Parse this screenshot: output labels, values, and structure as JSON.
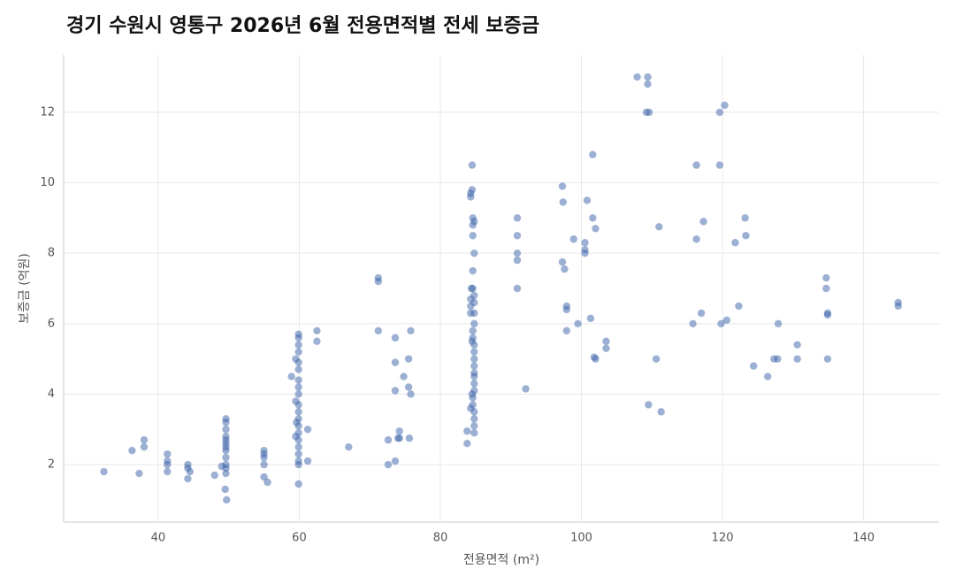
{
  "chart_data": {
    "type": "scatter",
    "title": "경기 수원시 영통구 2026년 6월 전용면적별 전세 보증금",
    "x_label": "전용면적 (m²)",
    "y_label": "보증금 (억원)",
    "color": "#3a62a8",
    "grid": true,
    "xlim": [
      26.6,
      150.7
    ],
    "ylim": [
      0.37,
      13.63
    ],
    "xticks": [
      40,
      60,
      80,
      100,
      120,
      140
    ],
    "yticks": [
      2,
      4,
      6,
      8,
      10,
      12
    ],
    "x": [
      32.3,
      36.3,
      37.3,
      38,
      38,
      41.3,
      41.3,
      41.3,
      41.3,
      44.2,
      44.2,
      44.2,
      44.5,
      48,
      49,
      49.5,
      49.7,
      49.6,
      49.6,
      49.6,
      49.6,
      49.6,
      49.6,
      49.6,
      49.6,
      49.6,
      49.6,
      49.6,
      49.6,
      55,
      55,
      55,
      55,
      55,
      55.5,
      58.9,
      59.5,
      59.5,
      59.9,
      59.9,
      59.9,
      59.9,
      59.9,
      59.9,
      59.9,
      59.9,
      59.9,
      59.9,
      59.9,
      59.9,
      59.9,
      59.9,
      59.9,
      59.9,
      59.9,
      59.9,
      59.9,
      59.9,
      59.5,
      59.6,
      61.2,
      61.2,
      62.5,
      62.5,
      67,
      71.2,
      71.2,
      71.2,
      72.6,
      72.6,
      73.6,
      73.6,
      73.6,
      73.6,
      74,
      74.2,
      74.2,
      74.8,
      75.5,
      75.5,
      75.6,
      75.8,
      75.8,
      83.8,
      83.8,
      84.5,
      84.5,
      84.3,
      84.3,
      84.6,
      84.6,
      84.8,
      84.6,
      84.8,
      84.6,
      84.6,
      84.4,
      84.3,
      84.3,
      84.3,
      84.8,
      84.8,
      84.8,
      84.8,
      84.6,
      84.6,
      84.8,
      84.8,
      84.8,
      84.8,
      84.8,
      84.8,
      84.8,
      84.8,
      84.6,
      84.6,
      84.8,
      84.8,
      84.8,
      84.8,
      84.3,
      84.5,
      84.5,
      90.9,
      90.9,
      90.9,
      90.9,
      90.9,
      92.1,
      97.3,
      97.4,
      97.3,
      97.6,
      97.9,
      97.9,
      97.9,
      98.9,
      99.5,
      100.5,
      100.5,
      100.5,
      100.8,
      101.3,
      101.6,
      101.6,
      101.8,
      102,
      102,
      103.5,
      103.5,
      107.9,
      109.4,
      109.4,
      109.2,
      109.6,
      109.5,
      110.6,
      111,
      111.3,
      115.8,
      116.3,
      116.3,
      117,
      117.3,
      119.6,
      119.6,
      119.8,
      120.3,
      120.6,
      121.8,
      122.3,
      123.2,
      123.3,
      124.4,
      126.4,
      127.3,
      127.8,
      127.9,
      130.6,
      130.6,
      134.7,
      134.7,
      134.9,
      134.9,
      134.9,
      144.9,
      144.9
    ],
    "values": [
      1.8,
      2.4,
      1.75,
      2.5,
      2.7,
      2.3,
      2.1,
      2.0,
      1.8,
      2.0,
      1.9,
      1.6,
      1.8,
      1.7,
      1.95,
      1.3,
      1.0,
      2.0,
      2.2,
      2.4,
      2.6,
      2.8,
      3.0,
      3.2,
      3.3,
      1.9,
      2.7,
      2.5,
      1.75,
      2.4,
      2.3,
      2.2,
      2.0,
      1.65,
      1.5,
      4.5,
      3.8,
      5.0,
      5.7,
      5.6,
      5.4,
      5.2,
      4.9,
      4.7,
      4.4,
      4.2,
      4.0,
      3.7,
      3.5,
      3.3,
      3.1,
      2.9,
      2.7,
      2.5,
      2.3,
      2.1,
      2.0,
      1.45,
      2.8,
      3.2,
      3.0,
      2.1,
      5.8,
      5.5,
      2.5,
      7.3,
      7.2,
      5.8,
      2.7,
      2.0,
      5.6,
      4.9,
      4.1,
      2.1,
      2.75,
      2.95,
      2.75,
      4.5,
      5.0,
      4.2,
      2.75,
      5.8,
      4.0,
      2.6,
      2.95,
      10.5,
      9.8,
      9.7,
      9.6,
      9.0,
      8.8,
      8.9,
      8.5,
      8.0,
      7.5,
      7.0,
      7.0,
      6.7,
      6.5,
      6.3,
      6.8,
      6.6,
      6.3,
      6.0,
      5.8,
      5.6,
      5.4,
      5.2,
      5.0,
      4.8,
      4.6,
      4.5,
      4.3,
      4.1,
      3.9,
      3.7,
      3.5,
      3.3,
      3.1,
      2.9,
      3.6,
      4.0,
      5.5,
      9.0,
      8.5,
      8.0,
      7.8,
      7.0,
      4.15,
      9.9,
      9.45,
      7.75,
      7.55,
      6.5,
      6.4,
      5.8,
      8.4,
      6.0,
      8.3,
      8.1,
      8.0,
      9.5,
      6.15,
      10.8,
      9.0,
      5.05,
      8.7,
      5.0,
      5.5,
      5.3,
      13.0,
      13.0,
      12.8,
      12.0,
      12.0,
      3.7,
      5.0,
      8.75,
      3.5,
      6.0,
      10.5,
      8.4,
      6.3,
      8.9,
      12.0,
      10.5,
      6.0,
      12.2,
      6.1,
      8.3,
      6.5,
      9.0,
      8.5,
      4.8,
      4.5,
      5.0,
      5.0,
      6.0,
      5.4,
      5.0,
      7.3,
      7.0,
      6.3,
      6.25,
      5.0,
      6.6,
      6.5
    ]
  }
}
